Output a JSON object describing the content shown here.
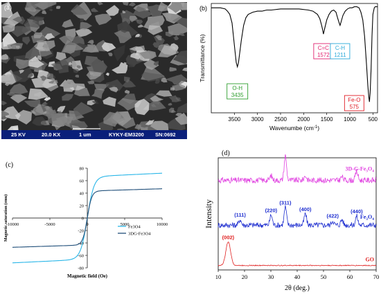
{
  "chart_data": [
    {
      "panel": "(a)",
      "type": "image",
      "label": "(a)",
      "info_bar": {
        "voltage": "25 KV",
        "magnification": "20.0 KX",
        "scale": "1 um",
        "instrument": "KYKY-EM3200",
        "serial": "SN:0692"
      }
    },
    {
      "panel": "(b)",
      "type": "line",
      "label": "(b)",
      "xlabel": "Wavenumbe (cm",
      "xlabel_sup": "-1",
      "xlabel_close": ")",
      "ylabel": "Transmittance (%)",
      "xlim": [
        4000,
        400
      ],
      "ylim": [
        0,
        100
      ],
      "xticks": [
        3500,
        3000,
        2500,
        2000,
        1500,
        1000,
        500
      ],
      "series": [
        {
          "color": "#000000",
          "x": [
            4000,
            3900,
            3800,
            3700,
            3650,
            3600,
            3550,
            3500,
            3460,
            3435,
            3410,
            3350,
            3300,
            3250,
            3200,
            3100,
            3000,
            2900,
            2800,
            2700,
            2500,
            2300,
            2100,
            1900,
            1800,
            1700,
            1650,
            1610,
            1590,
            1572,
            1550,
            1500,
            1450,
            1400,
            1350,
            1300,
            1260,
            1230,
            1211,
            1190,
            1150,
            1100,
            1050,
            1000,
            950,
            900,
            850,
            800,
            760,
            720,
            680,
            640,
            610,
            590,
            575,
            560,
            540,
            520,
            500,
            470,
            450,
            430,
            400
          ],
          "y": [
            96,
            96,
            96,
            95,
            93,
            90,
            82,
            62,
            46,
            42,
            46,
            66,
            80,
            87,
            90,
            92,
            93,
            93,
            94,
            94,
            95,
            95,
            95,
            94,
            93,
            90,
            86,
            80,
            76,
            72,
            76,
            85,
            90,
            93,
            94,
            92,
            86,
            82,
            80,
            83,
            89,
            93,
            95,
            96,
            96,
            97,
            97,
            96,
            92,
            85,
            70,
            45,
            25,
            15,
            10,
            18,
            40,
            70,
            90,
            96,
            97,
            97,
            97
          ]
        }
      ],
      "annotations": [
        {
          "group": "O-H",
          "value": "3435",
          "color": "#2e9e2e"
        },
        {
          "group": "C=C",
          "value": "1572",
          "color": "#e0226e"
        },
        {
          "group": "C-H",
          "value": "1211",
          "color": "#2aa9d9"
        },
        {
          "group": "Fe-O",
          "value": "575",
          "color": "#e01b24"
        }
      ]
    },
    {
      "panel": "(c)",
      "type": "line",
      "label": "(c)",
      "xlabel": "Magnetic field (Oe)",
      "ylabel": "Magnetic saturation (emu)",
      "xlim": [
        -10000,
        10000
      ],
      "ylim": [
        -80,
        80
      ],
      "xticks": [
        -10000,
        -5000,
        0,
        5000,
        10000
      ],
      "xtick_labels": [
        "-10000",
        "-5000",
        "0",
        "5000",
        "10000"
      ],
      "yticks": [
        -80,
        -60,
        -40,
        -20,
        0,
        20,
        40,
        60,
        80
      ],
      "ytick_labels": [
        "-80",
        "-60",
        "-40",
        "-20",
        "0",
        "20",
        "40",
        "60",
        "80"
      ],
      "legend_position": "center-right",
      "series": [
        {
          "name": "Fe3O4",
          "color": "#29b6e8",
          "ms": 72,
          "hk": 900
        },
        {
          "name": "3DG-Fe3O4",
          "color": "#1f4e79",
          "ms": 47,
          "hk": 600
        }
      ]
    },
    {
      "panel": "(d)",
      "type": "line",
      "label": "(d)",
      "xlabel": "2θ (deg.)",
      "ylabel": "Intensity",
      "xlim": [
        10,
        70
      ],
      "xticks": [
        10,
        20,
        30,
        40,
        50,
        60,
        70
      ],
      "xtick_labels": [
        "10",
        "20",
        "30",
        "40",
        "50",
        "60",
        "70"
      ],
      "series": [
        {
          "name": "3D-G-Fe",
          "name_sub": "3",
          "name_mid": "O",
          "name_sub2": "4",
          "color": "#e040e0",
          "baseline": 0.8,
          "noise": 0.025,
          "peaks": [
            [
              30.1,
              0.04
            ],
            [
              35.5,
              0.22
            ],
            [
              43.1,
              0.04
            ],
            [
              57.0,
              0.03
            ],
            [
              62.6,
              0.08
            ]
          ]
        },
        {
          "name": "Fe",
          "name_sub": "3",
          "name_mid": "O",
          "name_sub2": "4",
          "color": "#1f2fd0",
          "baseline": 0.4,
          "noise": 0.025,
          "peaks": [
            [
              18.3,
              0.05
            ],
            [
              30.1,
              0.09
            ],
            [
              35.5,
              0.16
            ],
            [
              43.1,
              0.1
            ],
            [
              53.5,
              0.04
            ],
            [
              57.0,
              0.05
            ],
            [
              62.6,
              0.08
            ]
          ]
        },
        {
          "name": "GO",
          "color": "#e02020",
          "baseline": 0.04,
          "noise": 0.004,
          "peaks": [
            [
              13.8,
              0.21
            ]
          ]
        }
      ],
      "peak_labels": [
        {
          "text": "(002)",
          "x": 13.8,
          "series": 2
        },
        {
          "text": "(111)",
          "x": 18.3,
          "series": 1
        },
        {
          "text": "(220)",
          "x": 30.1,
          "series": 1
        },
        {
          "text": "(311)",
          "x": 35.5,
          "series": 1
        },
        {
          "text": "(400)",
          "x": 43.1,
          "series": 1
        },
        {
          "text": "(422)",
          "x": 53.5,
          "series": 1
        },
        {
          "text": "(440)",
          "x": 62.6,
          "series": 1
        }
      ]
    }
  ]
}
